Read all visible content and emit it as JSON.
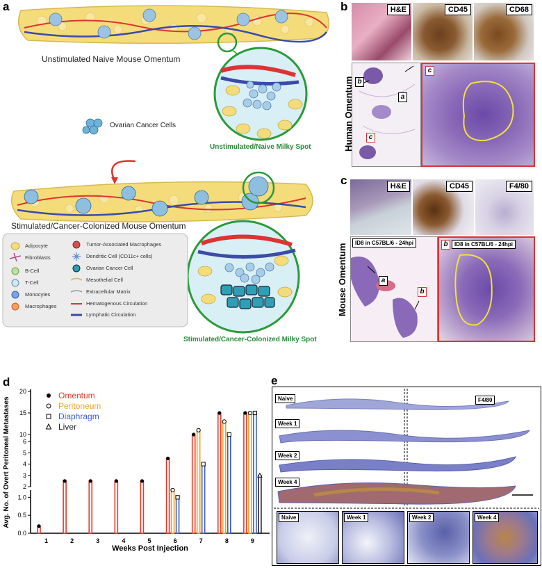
{
  "panels": {
    "a": {
      "letter": "a",
      "caption_top": "Unstimulated Naive Mouse Omentum",
      "caption_spot_top": "Unstimulated/Naive Milky Spot",
      "cancer_cells": "Ovarian Cancer Cells",
      "caption_bottom": "Stimulated/Cancer-Colonized Mouse Omentum",
      "caption_spot_bottom": "Stimulated/Cancer-Colonized Milky Spot",
      "legend_left": [
        "Adipocyte",
        "Fibroblasts",
        "B-Cell",
        "T-Cell",
        "Monocytes",
        "Macrophages"
      ],
      "legend_right": [
        "Tumor-Associated Macrophages",
        "Dendritic Cell (CD11c+ cells)",
        "Ovarian Cancer Cell",
        "Mesothelial Cell",
        "Extracellular Matrix",
        "Hematogenous Circulation",
        "Lymphatic Circulation"
      ]
    },
    "b": {
      "letter": "b",
      "side_title": "Human Omentum",
      "stains": [
        "H&E",
        "CD45",
        "CD68"
      ],
      "letters": [
        "b",
        "a",
        "c",
        "c"
      ]
    },
    "c": {
      "letter": "c",
      "side_title": "Mouse Omentum",
      "stains": [
        "H&E",
        "CD45",
        "F4/80"
      ],
      "label_left": "ID8 in C57BL/6 - 24hpi",
      "label_right": "ID8 in C57BL/6 - 24hpi",
      "letters": [
        "a",
        "b",
        "b"
      ]
    },
    "d": {
      "letter": "d"
    },
    "e": {
      "letter": "e",
      "stain": "F4/80",
      "rows": [
        "Naive",
        "Week 1",
        "Week 2",
        "Week 4"
      ],
      "zooms": [
        "Naive",
        "Week 1",
        "Week 2",
        "Week 4"
      ]
    }
  },
  "chart_data": {
    "type": "bar",
    "xlabel": "Weeks Post Injection",
    "ylabel": "Avg. No. of Overt Peritoneal Metastases",
    "categories": [
      "1",
      "2",
      "3",
      "4",
      "5",
      "6",
      "7",
      "8",
      "9"
    ],
    "yticks_lower": [
      "0.0",
      "0.5",
      "1.0"
    ],
    "yticks_upper": [
      "2",
      "3",
      "4",
      "5",
      "6",
      "10",
      "15",
      "20"
    ],
    "series": [
      {
        "name": "Omentum",
        "color": "#e8392a",
        "marker": "filled-circle",
        "values": [
          0.2,
          2.5,
          2.5,
          2.5,
          2.5,
          4.5,
          8,
          15,
          15
        ]
      },
      {
        "name": "Peritoneum",
        "color": "#f2a122",
        "marker": "open-circle",
        "values": [
          0,
          0,
          0,
          0,
          0,
          1.5,
          11,
          13,
          15
        ]
      },
      {
        "name": "Diaphragm",
        "color": "#3b5dc9",
        "marker": "open-square",
        "values": [
          0,
          0,
          0,
          0,
          0,
          1.0,
          4,
          10,
          15
        ]
      },
      {
        "name": "Liver",
        "color": "#222222",
        "marker": "open-triangle",
        "values": [
          0,
          0,
          0,
          0,
          0,
          0,
          0,
          0,
          3
        ]
      }
    ]
  }
}
